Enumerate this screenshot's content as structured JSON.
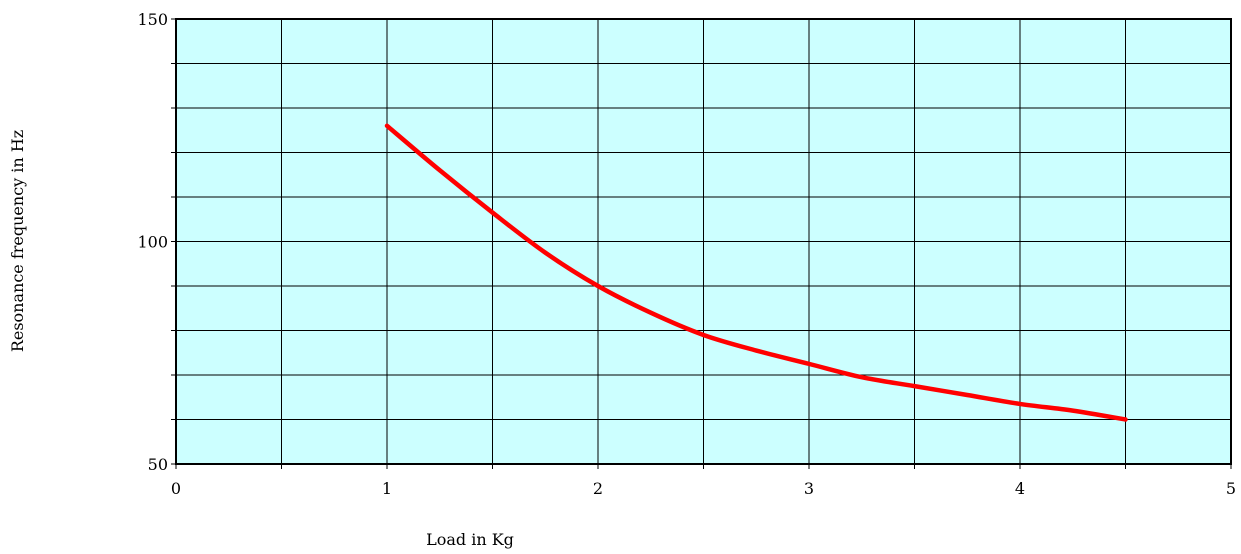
{
  "chart_data": {
    "type": "line",
    "title": "",
    "xlabel": "Load in Kg",
    "ylabel": "Resonance frequency in Hz",
    "xlim": [
      0,
      5
    ],
    "ylim": [
      50,
      150
    ],
    "x_ticks": [
      0,
      1,
      2,
      3,
      4,
      5
    ],
    "y_ticks": [
      50,
      100,
      150
    ],
    "x_minor_step": 0.5,
    "y_minor_step": 10,
    "grid": true,
    "plot_background": "#ccffff",
    "series": [
      {
        "color": "#ff0000",
        "x": [
          1.0,
          1.25,
          1.5,
          1.75,
          2.0,
          2.25,
          2.5,
          2.75,
          3.0,
          3.25,
          3.5,
          3.75,
          4.0,
          4.25,
          4.5
        ],
        "y": [
          126.0,
          116.0,
          106.5,
          97.5,
          90.0,
          84.0,
          79.0,
          75.5,
          72.5,
          69.5,
          67.5,
          65.5,
          63.5,
          62.0,
          60.0
        ]
      }
    ]
  }
}
